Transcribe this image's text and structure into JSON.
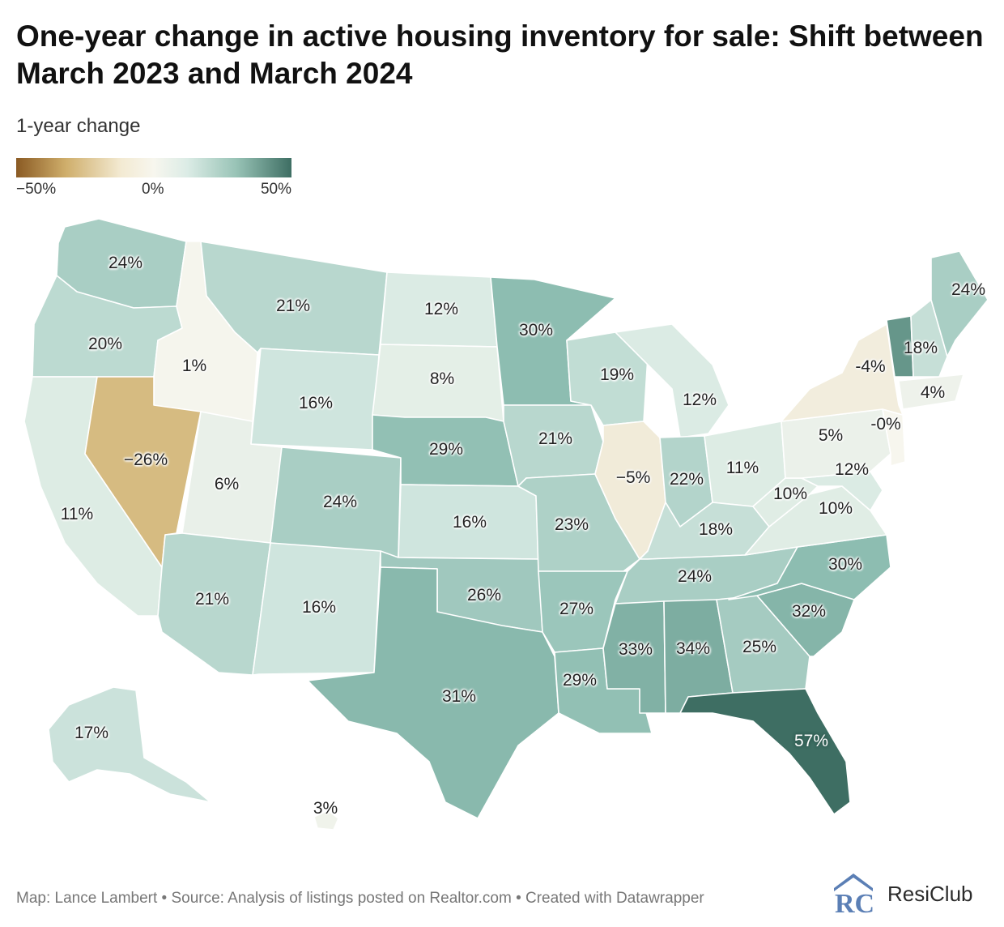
{
  "title": "One-year change in active housing inventory for sale: Shift between March 2023 and March 2024",
  "legend": {
    "label": "1-year change",
    "ticks": [
      "−50%",
      "0%",
      "50%"
    ],
    "colors": {
      "negative": "#8a5a23",
      "neutral": "#f7f6ee",
      "positive": "#3e6e63"
    }
  },
  "states": [
    {
      "code": "WA",
      "value": 24,
      "label": "24%"
    },
    {
      "code": "OR",
      "value": 20,
      "label": "20%"
    },
    {
      "code": "CA",
      "value": 11,
      "label": "11%"
    },
    {
      "code": "ID",
      "value": 1,
      "label": "1%"
    },
    {
      "code": "NV",
      "value": -26,
      "label": "−26%"
    },
    {
      "code": "UT",
      "value": 6,
      "label": "6%"
    },
    {
      "code": "AZ",
      "value": 21,
      "label": "21%"
    },
    {
      "code": "MT",
      "value": 21,
      "label": "21%"
    },
    {
      "code": "WY",
      "value": 16,
      "label": "16%"
    },
    {
      "code": "CO",
      "value": 24,
      "label": "24%"
    },
    {
      "code": "NM",
      "value": 16,
      "label": "16%"
    },
    {
      "code": "ND",
      "value": 12,
      "label": "12%"
    },
    {
      "code": "SD",
      "value": 8,
      "label": "8%"
    },
    {
      "code": "NE",
      "value": 29,
      "label": "29%"
    },
    {
      "code": "KS",
      "value": 16,
      "label": "16%"
    },
    {
      "code": "OK",
      "value": 26,
      "label": "26%"
    },
    {
      "code": "TX",
      "value": 31,
      "label": "31%"
    },
    {
      "code": "MN",
      "value": 30,
      "label": "30%"
    },
    {
      "code": "IA",
      "value": 21,
      "label": "21%"
    },
    {
      "code": "MO",
      "value": 23,
      "label": "23%"
    },
    {
      "code": "AR",
      "value": 27,
      "label": "27%"
    },
    {
      "code": "LA",
      "value": 29,
      "label": "29%"
    },
    {
      "code": "WI",
      "value": 19,
      "label": "19%"
    },
    {
      "code": "IL",
      "value": -5,
      "label": "−5%"
    },
    {
      "code": "MI",
      "value": 12,
      "label": "12%"
    },
    {
      "code": "IN",
      "value": 22,
      "label": "22%"
    },
    {
      "code": "OH",
      "value": 11,
      "label": "11%"
    },
    {
      "code": "KY",
      "value": 18,
      "label": "18%"
    },
    {
      "code": "TN",
      "value": 24,
      "label": "24%"
    },
    {
      "code": "MS",
      "value": 33,
      "label": "33%"
    },
    {
      "code": "AL",
      "value": 34,
      "label": "34%"
    },
    {
      "code": "GA",
      "value": 25,
      "label": "25%"
    },
    {
      "code": "FL",
      "value": 57,
      "label": "57%"
    },
    {
      "code": "SC",
      "value": 32,
      "label": "32%"
    },
    {
      "code": "NC",
      "value": 30,
      "label": "30%"
    },
    {
      "code": "VA",
      "value": 10,
      "label": "10%"
    },
    {
      "code": "WV",
      "value": 10,
      "label": "10%"
    },
    {
      "code": "MD",
      "value": 12,
      "label": "12%"
    },
    {
      "code": "PA",
      "value": 5,
      "label": "5%"
    },
    {
      "code": "NJ",
      "value": 0,
      "label": "-0%"
    },
    {
      "code": "NY",
      "value": -4,
      "label": "-4%"
    },
    {
      "code": "CT",
      "value": 4,
      "label": "4%"
    },
    {
      "code": "VT",
      "value": 40,
      "label": ""
    },
    {
      "code": "NH",
      "value": 18,
      "label": "18%"
    },
    {
      "code": "ME",
      "value": 24,
      "label": "24%"
    },
    {
      "code": "AK",
      "value": 17,
      "label": "17%"
    },
    {
      "code": "HI",
      "value": 3,
      "label": "3%"
    }
  ],
  "footer": "Map: Lance Lambert • Source: Analysis of listings posted on Realtor.com • Created with Datawrapper",
  "brand": {
    "name": "ResiClub",
    "logo_letters": "RC",
    "logo_color": "#5b7fb5"
  }
}
